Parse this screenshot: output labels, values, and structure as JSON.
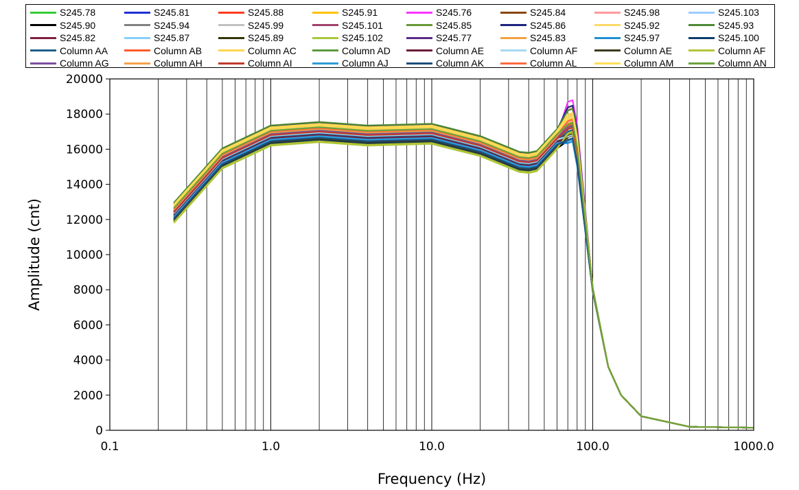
{
  "chart_data": {
    "type": "line",
    "title": "",
    "xlabel": "Frequency (Hz)",
    "ylabel": "Amplitude  (cnt)",
    "xscale": "log",
    "xlim": [
      0.1,
      1000
    ],
    "ylim": [
      0,
      20000
    ],
    "x_tick_labels": [
      "0.1",
      "1.0",
      "10.0",
      "100.0",
      "1000.0"
    ],
    "y_tick_labels": [
      "0",
      "2000",
      "4000",
      "6000",
      "8000",
      "10000",
      "12000",
      "14000",
      "16000",
      "18000",
      "20000"
    ],
    "grid": "vertical log minor + major",
    "legend_position": "top",
    "frequencies": [
      0.25,
      0.5,
      1,
      2,
      4,
      10,
      20,
      35,
      40,
      45,
      50,
      60,
      70,
      75,
      80,
      100,
      125,
      150,
      200,
      400,
      1000
    ],
    "series": [
      {
        "name": "S245.78",
        "color": "#33cc33",
        "offset": 0,
        "peak": 17300
      },
      {
        "name": "S245.81",
        "color": "#1f2fd6",
        "offset": -150,
        "peak": 16900
      },
      {
        "name": "S245.88",
        "color": "#ff3b1f",
        "offset": 200,
        "peak": 17900
      },
      {
        "name": "S245.91",
        "color": "#ffc000",
        "offset": 450,
        "peak": 17600
      },
      {
        "name": "S245.76",
        "color": "#ff33ff",
        "offset": 300,
        "peak": 18700
      },
      {
        "name": "S245.84",
        "color": "#8b4513",
        "offset": 100,
        "peak": 17400
      },
      {
        "name": "S245.98",
        "color": "#ff9999",
        "offset": 500,
        "peak": 18200
      },
      {
        "name": "S245.103",
        "color": "#99ccff",
        "offset": -100,
        "peak": 16600
      },
      {
        "name": "S245.90",
        "color": "#000000",
        "offset": -450,
        "peak": 16700
      },
      {
        "name": "S245.94",
        "color": "#808080",
        "offset": -300,
        "peak": 17000
      },
      {
        "name": "S245.99",
        "color": "#c0c0c0",
        "offset": 350,
        "peak": 17800
      },
      {
        "name": "S245.101",
        "color": "#a0406a",
        "offset": -250,
        "peak": 17100
      },
      {
        "name": "S245.85",
        "color": "#669933",
        "offset": 150,
        "peak": 17500
      },
      {
        "name": "S245.86",
        "color": "#1a237e",
        "offset": 600,
        "peak": 18300
      },
      {
        "name": "S245.92",
        "color": "#ffd966",
        "offset": 400,
        "peak": 17700
      },
      {
        "name": "S245.93",
        "color": "#4d8a33",
        "offset": 650,
        "peak": 18100
      },
      {
        "name": "S245.82",
        "color": "#7f1f3f",
        "offset": -50,
        "peak": 17000
      },
      {
        "name": "S245.87",
        "color": "#87cefa",
        "offset": 50,
        "peak": 16800
      },
      {
        "name": "S245.89",
        "color": "#333300",
        "offset": -400,
        "peak": 16900
      },
      {
        "name": "S245.102",
        "color": "#a8c83a",
        "offset": -500,
        "peak": 17200
      },
      {
        "name": "S245.77",
        "color": "#5b2a86",
        "offset": 250,
        "peak": 17300
      },
      {
        "name": "S245.83",
        "color": "#f4a040",
        "offset": 300,
        "peak": 17600
      },
      {
        "name": "S245.97",
        "color": "#1f8fd6",
        "offset": -200,
        "peak": 16500
      },
      {
        "name": "S245.100",
        "color": "#0b3d6b",
        "offset": -350,
        "peak": 16700
      },
      {
        "name": "Column AA",
        "color": "#1f5f8b",
        "offset": 0,
        "peak": 17100
      },
      {
        "name": "Column AB",
        "color": "#ff5a2c",
        "offset": 100,
        "peak": 17400
      },
      {
        "name": "Column AC",
        "color": "#ffd54f",
        "offset": 550,
        "peak": 17900
      },
      {
        "name": "Column AD",
        "color": "#5c9a3c",
        "offset": 200,
        "peak": 17200
      },
      {
        "name": "Column AE",
        "color": "#6b1a3a",
        "offset": -100,
        "peak": 16900
      },
      {
        "name": "Column AF",
        "color": "#a8d8f0",
        "offset": 50,
        "peak": 16800
      },
      {
        "name": "Column AE",
        "color": "#3a3a1a",
        "offset": -300,
        "peak": 17000
      },
      {
        "name": "Column AF",
        "color": "#b5c335",
        "offset": -450,
        "peak": 17100
      },
      {
        "name": "Column AG",
        "color": "#7a4fa0",
        "offset": 150,
        "peak": 17300
      },
      {
        "name": "Column AH",
        "color": "#f5a04a",
        "offset": 250,
        "peak": 17500
      },
      {
        "name": "Column AI",
        "color": "#c0392b",
        "offset": 100,
        "peak": 17200
      },
      {
        "name": "Column AJ",
        "color": "#2e9ad6",
        "offset": -150,
        "peak": 16600
      },
      {
        "name": "Column AK",
        "color": "#1d4e7a",
        "offset": -250,
        "peak": 16700
      },
      {
        "name": "Column AL",
        "color": "#ff6a3d",
        "offset": 300,
        "peak": 17600
      },
      {
        "name": "Column AM",
        "color": "#ffdd55",
        "offset": 500,
        "peak": 17800
      },
      {
        "name": "Column AN",
        "color": "#6aa33a",
        "offset": 350,
        "peak": 17400
      }
    ],
    "base_curve": [
      12300,
      15400,
      16700,
      16900,
      16700,
      16800,
      16100,
      15200,
      15150,
      15250,
      15700,
      16500,
      17300,
      17400,
      16000,
      8000,
      3600,
      2000,
      800,
      200,
      150
    ]
  }
}
